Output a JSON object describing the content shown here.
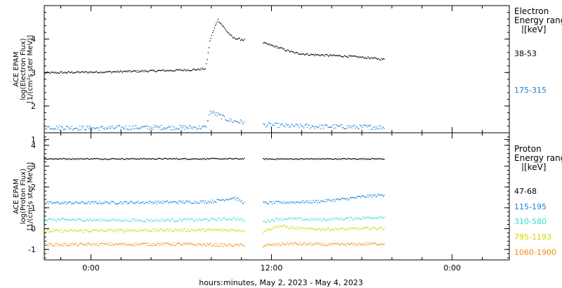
{
  "chart_data": [
    {
      "type": "scatter",
      "panel": "electron",
      "ylabel": [
        "ACE EPAM",
        "log(Electron Flux)",
        "[1/(cm²s ster MeV)]"
      ],
      "y_ticks": [
        "1",
        "2",
        "3",
        "4"
      ],
      "ylim": [
        1.2,
        5.0
      ],
      "legend_title": [
        "Electron",
        "Energy range",
        "[keV]"
      ],
      "series": [
        {
          "name": "38-53",
          "color": "#000000",
          "profile": [
            [
              -3.1,
              3.0
            ],
            [
              -1,
              3.02
            ],
            [
              1,
              3.03
            ],
            [
              3,
              3.05
            ],
            [
              5,
              3.07
            ],
            [
              7,
              3.1
            ],
            [
              7.6,
              3.13
            ],
            [
              7.9,
              4.0
            ],
            [
              8.4,
              4.6
            ],
            [
              9,
              4.25
            ],
            [
              9.4,
              4.05
            ],
            [
              10.2,
              3.98
            ],
            [
              11.4,
              3.9
            ],
            [
              12.5,
              3.75
            ],
            [
              13.5,
              3.6
            ],
            [
              14.5,
              3.55
            ],
            [
              16,
              3.52
            ],
            [
              17,
              3.5
            ],
            [
              18.5,
              3.45
            ],
            [
              19.5,
              3.4
            ]
          ]
        },
        {
          "name": "175-315",
          "color": "#1a7fd4",
          "profile": [
            [
              -3.1,
              1.38
            ],
            [
              0,
              1.35
            ],
            [
              3,
              1.37
            ],
            [
              7.6,
              1.37
            ],
            [
              7.9,
              1.85
            ],
            [
              8.4,
              1.75
            ],
            [
              9.2,
              1.58
            ],
            [
              10.2,
              1.52
            ],
            [
              11.4,
              1.45
            ],
            [
              13,
              1.42
            ],
            [
              15,
              1.4
            ],
            [
              19.5,
              1.38
            ]
          ]
        }
      ]
    },
    {
      "type": "scatter",
      "panel": "proton",
      "ylabel": [
        "ACE EPAM",
        "log(Proton Flux)",
        "[1/(cm²s ster MeV)]"
      ],
      "y_ticks": [
        "-1",
        "0",
        "1",
        "2",
        "3",
        "4"
      ],
      "ylim": [
        -1.5,
        4.6
      ],
      "legend_title": [
        "Proton",
        "Energy range",
        "[keV]"
      ],
      "series": [
        {
          "name": "47-68",
          "color": "#000000",
          "profile": [
            [
              -3.1,
              3.37
            ],
            [
              10.2,
              3.37
            ],
            [
              11.4,
              3.36
            ],
            [
              19.5,
              3.37
            ]
          ]
        },
        {
          "name": "115-195",
          "color": "#1a7fd4",
          "profile": [
            [
              -3.1,
              1.25
            ],
            [
              3,
              1.28
            ],
            [
              7,
              1.3
            ],
            [
              8,
              1.32
            ],
            [
              9.5,
              1.5
            ],
            [
              10.2,
              1.25
            ],
            [
              11.4,
              1.25
            ],
            [
              15,
              1.32
            ],
            [
              17,
              1.45
            ],
            [
              18,
              1.55
            ],
            [
              19.5,
              1.65
            ]
          ]
        },
        {
          "name": "310-580",
          "color": "#33dbd2",
          "profile": [
            [
              -3.1,
              0.45
            ],
            [
              4,
              0.42
            ],
            [
              8,
              0.45
            ],
            [
              9.5,
              0.5
            ],
            [
              10.2,
              0.4
            ],
            [
              11.4,
              0.35
            ],
            [
              12.5,
              0.5
            ],
            [
              15,
              0.45
            ],
            [
              17,
              0.5
            ],
            [
              19.5,
              0.58
            ]
          ]
        },
        {
          "name": "795-1193",
          "color": "#d4d400",
          "profile": [
            [
              -3.1,
              -0.1
            ],
            [
              5,
              -0.05
            ],
            [
              10.2,
              -0.05
            ],
            [
              11.4,
              -0.1
            ],
            [
              12.5,
              0.15
            ],
            [
              14,
              0.0
            ],
            [
              17,
              0.0
            ],
            [
              19.5,
              0.05
            ]
          ]
        },
        {
          "name": "1060-1900",
          "color": "#f08c0a",
          "profile": [
            [
              -3.1,
              -0.75
            ],
            [
              5,
              -0.72
            ],
            [
              10.2,
              -0.78
            ],
            [
              11.4,
              -0.8
            ],
            [
              13,
              -0.7
            ],
            [
              16,
              -0.75
            ],
            [
              19.5,
              -0.7
            ]
          ]
        }
      ]
    }
  ],
  "x_axis": {
    "label": "hours:minutes, May  2, 2023 - May  4, 2023",
    "ticks": [
      {
        "t": 0,
        "label": "0:00"
      },
      {
        "t": 12,
        "label": "12:00"
      },
      {
        "t": 24,
        "label": "0:00"
      }
    ],
    "xlim": [
      -3.1,
      27.8
    ],
    "data_start": -3.1,
    "gap": [
      10.2,
      11.4
    ],
    "data_end": 19.5
  }
}
